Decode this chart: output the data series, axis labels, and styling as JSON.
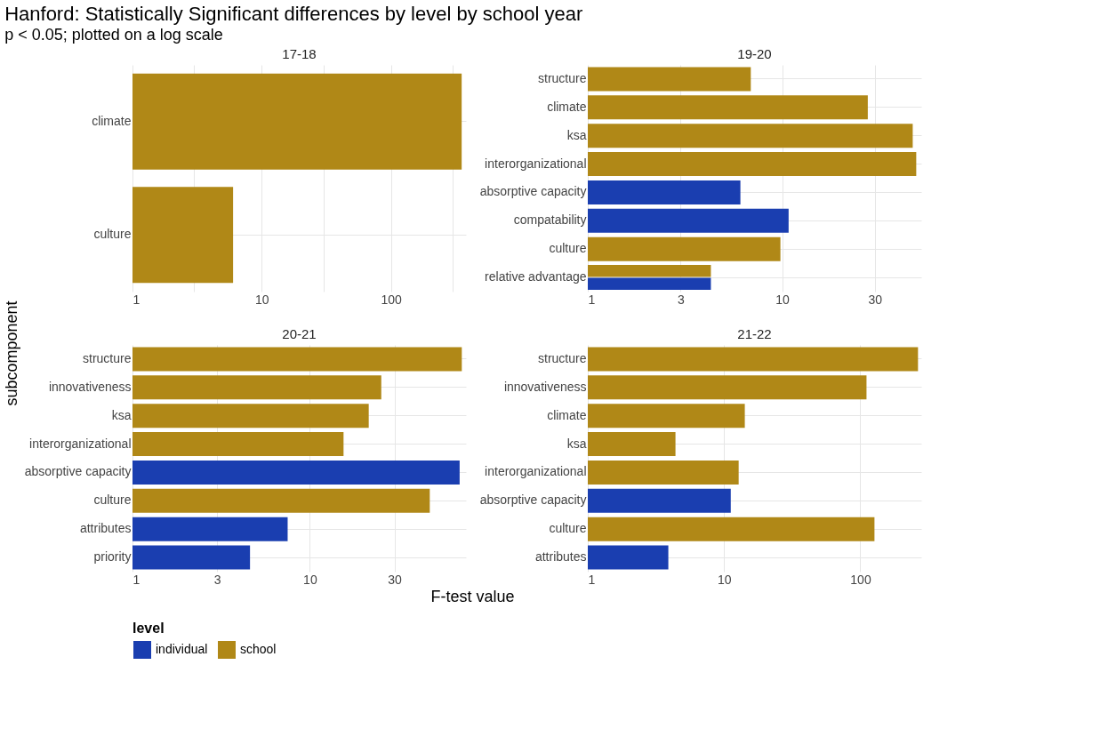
{
  "chart_data": [
    {
      "type": "bar",
      "orientation": "horizontal",
      "title": "17-18",
      "annotations": [
        "Hanford: Statistically Significant differences by level by school year",
        "p < 0.05; plotted on a log scale"
      ],
      "xlabel": "F-test value",
      "ylabel": "subcomponent",
      "legend_title": "level",
      "legend": "bottom",
      "log": "x",
      "grid": true,
      "categories": [
        "climate",
        "culture"
      ],
      "series": [
        {
          "name": "individual",
          "color": "#1a3eb0",
          "values": [
            null,
            null
          ]
        },
        {
          "name": "school",
          "color": "#b08817",
          "values": [
            352,
            6.0
          ]
        }
      ],
      "xlim": [
        1,
        380
      ],
      "xticks": [
        1,
        {
          "value": 3,
          "label": null
        },
        10,
        {
          "value": 30,
          "label": null
        },
        100,
        {
          "value": 300,
          "label": null
        }
      ]
    },
    {
      "type": "bar",
      "orientation": "horizontal",
      "title": "19-20",
      "log": "x",
      "grid": true,
      "categories": [
        "structure",
        "climate",
        "ksa",
        "interorganizational",
        "absorptive capacity",
        "compatability",
        "culture",
        "relative advantage"
      ],
      "series": [
        {
          "color": "#1a3eb0",
          "values": [
            null,
            null,
            null,
            null,
            6.1,
            10.8,
            null,
            4.3
          ]
        },
        {
          "color": "#b08817",
          "values": [
            6.9,
            27.6,
            47,
            49,
            null,
            null,
            9.8,
            4.3
          ]
        }
      ],
      "xlim": [
        1,
        52
      ],
      "xticks": [
        1,
        3,
        10,
        30
      ]
    },
    {
      "type": "bar",
      "orientation": "horizontal",
      "title": "20-21",
      "log": "x",
      "grid": true,
      "categories": [
        "structure",
        "innovativeness",
        "ksa",
        "interorganizational",
        "absorptive capacity",
        "culture",
        "attributes",
        "priority"
      ],
      "series": [
        {
          "color": "#1a3eb0",
          "values": [
            null,
            null,
            null,
            null,
            70,
            null,
            7.5,
            4.6
          ]
        },
        {
          "color": "#b08817",
          "values": [
            72,
            25.3,
            21.5,
            15.5,
            null,
            47.5,
            null,
            null
          ]
        }
      ],
      "xlim": [
        1,
        76
      ],
      "xticks": [
        1,
        3,
        10,
        30
      ]
    },
    {
      "type": "bar",
      "orientation": "horizontal",
      "title": "21-22",
      "log": "x",
      "grid": true,
      "categories": [
        "structure",
        "innovativeness",
        "climate",
        "ksa",
        "interorganizational",
        "absorptive capacity",
        "culture",
        "attributes"
      ],
      "series": [
        {
          "color": "#1a3eb0",
          "values": [
            null,
            null,
            null,
            null,
            null,
            11.2,
            null,
            3.9
          ]
        },
        {
          "color": "#b08817",
          "values": [
            265,
            111,
            14.2,
            4.4,
            12.8,
            null,
            127,
            null
          ]
        }
      ],
      "xlim": [
        1,
        280
      ],
      "xticks": [
        1,
        10,
        100
      ]
    }
  ]
}
